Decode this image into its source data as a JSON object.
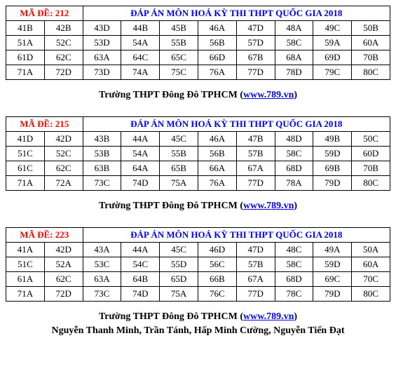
{
  "caption_school": "Trường THPT Đông Đô TPHCM (",
  "caption_url": "www.789.vn",
  "caption_close": ")",
  "authors": "Nguyễn Thanh Minh, Trần Tánh, Hấp Minh Cường, Nguyễn Tiến Đạt",
  "tables": [
    {
      "code": "MÃ ĐỀ: 212",
      "title": "ĐÁP ÁN MÔN HOÁ KỲ THI THPT QUỐC GIA 2018",
      "rows": [
        [
          "41B",
          "42B",
          "43D",
          "44B",
          "45B",
          "46A",
          "47D",
          "48A",
          "49C",
          "50B"
        ],
        [
          "51A",
          "52C",
          "53D",
          "54A",
          "55B",
          "56B",
          "57D",
          "58C",
          "59A",
          "60A"
        ],
        [
          "61D",
          "62C",
          "63A",
          "64C",
          "65C",
          "66D",
          "67B",
          "68A",
          "69D",
          "70B"
        ],
        [
          "71A",
          "72D",
          "73D",
          "74A",
          "75C",
          "76A",
          "77D",
          "78D",
          "79C",
          "80C"
        ]
      ]
    },
    {
      "code": "MÃ ĐỀ: 215",
      "title": "ĐÁP ÁN MÔN HOÁ KỲ THI THPT QUỐC GIA 2018",
      "rows": [
        [
          "41D",
          "42D",
          "43B",
          "44A",
          "45C",
          "46A",
          "47B",
          "48D",
          "49B",
          "50C"
        ],
        [
          "51C",
          "52C",
          "53B",
          "54A",
          "55B",
          "56B",
          "57B",
          "58C",
          "59D",
          "60D"
        ],
        [
          "61C",
          "62C",
          "63B",
          "64A",
          "65B",
          "66A",
          "67A",
          "68D",
          "69B",
          "70B"
        ],
        [
          "71A",
          "72A",
          "73C",
          "74D",
          "75A",
          "76A",
          "77D",
          "78A",
          "79D",
          "80C"
        ]
      ]
    },
    {
      "code": "MÃ ĐỀ: 223",
      "title": "ĐÁP ÁN MÔN HOÁ KỲ THI THPT QUỐC GIA 2018",
      "rows": [
        [
          "41A",
          "42D",
          "43A",
          "44A",
          "45C",
          "46D",
          "47D",
          "48C",
          "49A",
          "50A"
        ],
        [
          "51C",
          "52A",
          "53C",
          "54C",
          "55D",
          "56C",
          "57B",
          "58C",
          "59D",
          "60A"
        ],
        [
          "61A",
          "62C",
          "63A",
          "64B",
          "65D",
          "66B",
          "67A",
          "68D",
          "69C",
          "70C"
        ],
        [
          "71A",
          "72D",
          "73C",
          "74D",
          "75A",
          "76C",
          "77D",
          "78C",
          "79D",
          "80C"
        ]
      ]
    }
  ],
  "styles": {
    "code_color": "#ff0000",
    "title_color": "#0000ff",
    "border_color": "#000000",
    "background": "#ffffff"
  }
}
